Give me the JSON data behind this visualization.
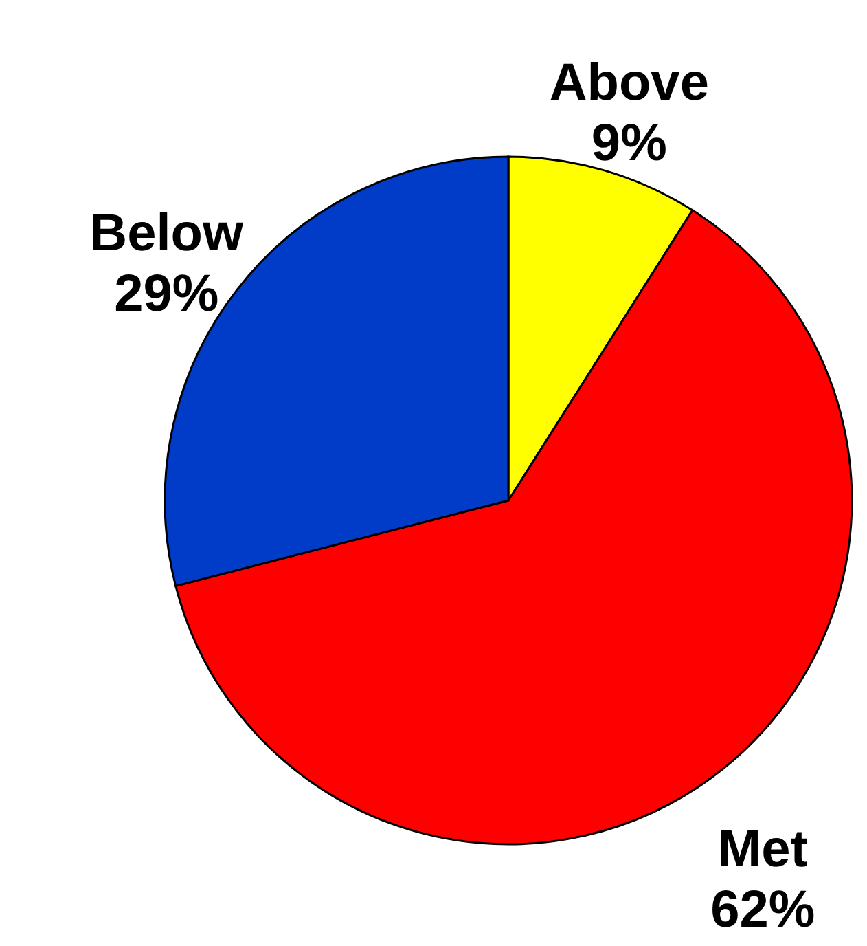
{
  "chart_data": {
    "type": "pie",
    "categories": [
      "Above",
      "Met",
      "Below"
    ],
    "values": [
      9,
      62,
      29
    ],
    "value_labels": [
      "9%",
      "62%",
      "29%"
    ],
    "colors": [
      "#ffff00",
      "#ff0000",
      "#003cc8"
    ]
  }
}
